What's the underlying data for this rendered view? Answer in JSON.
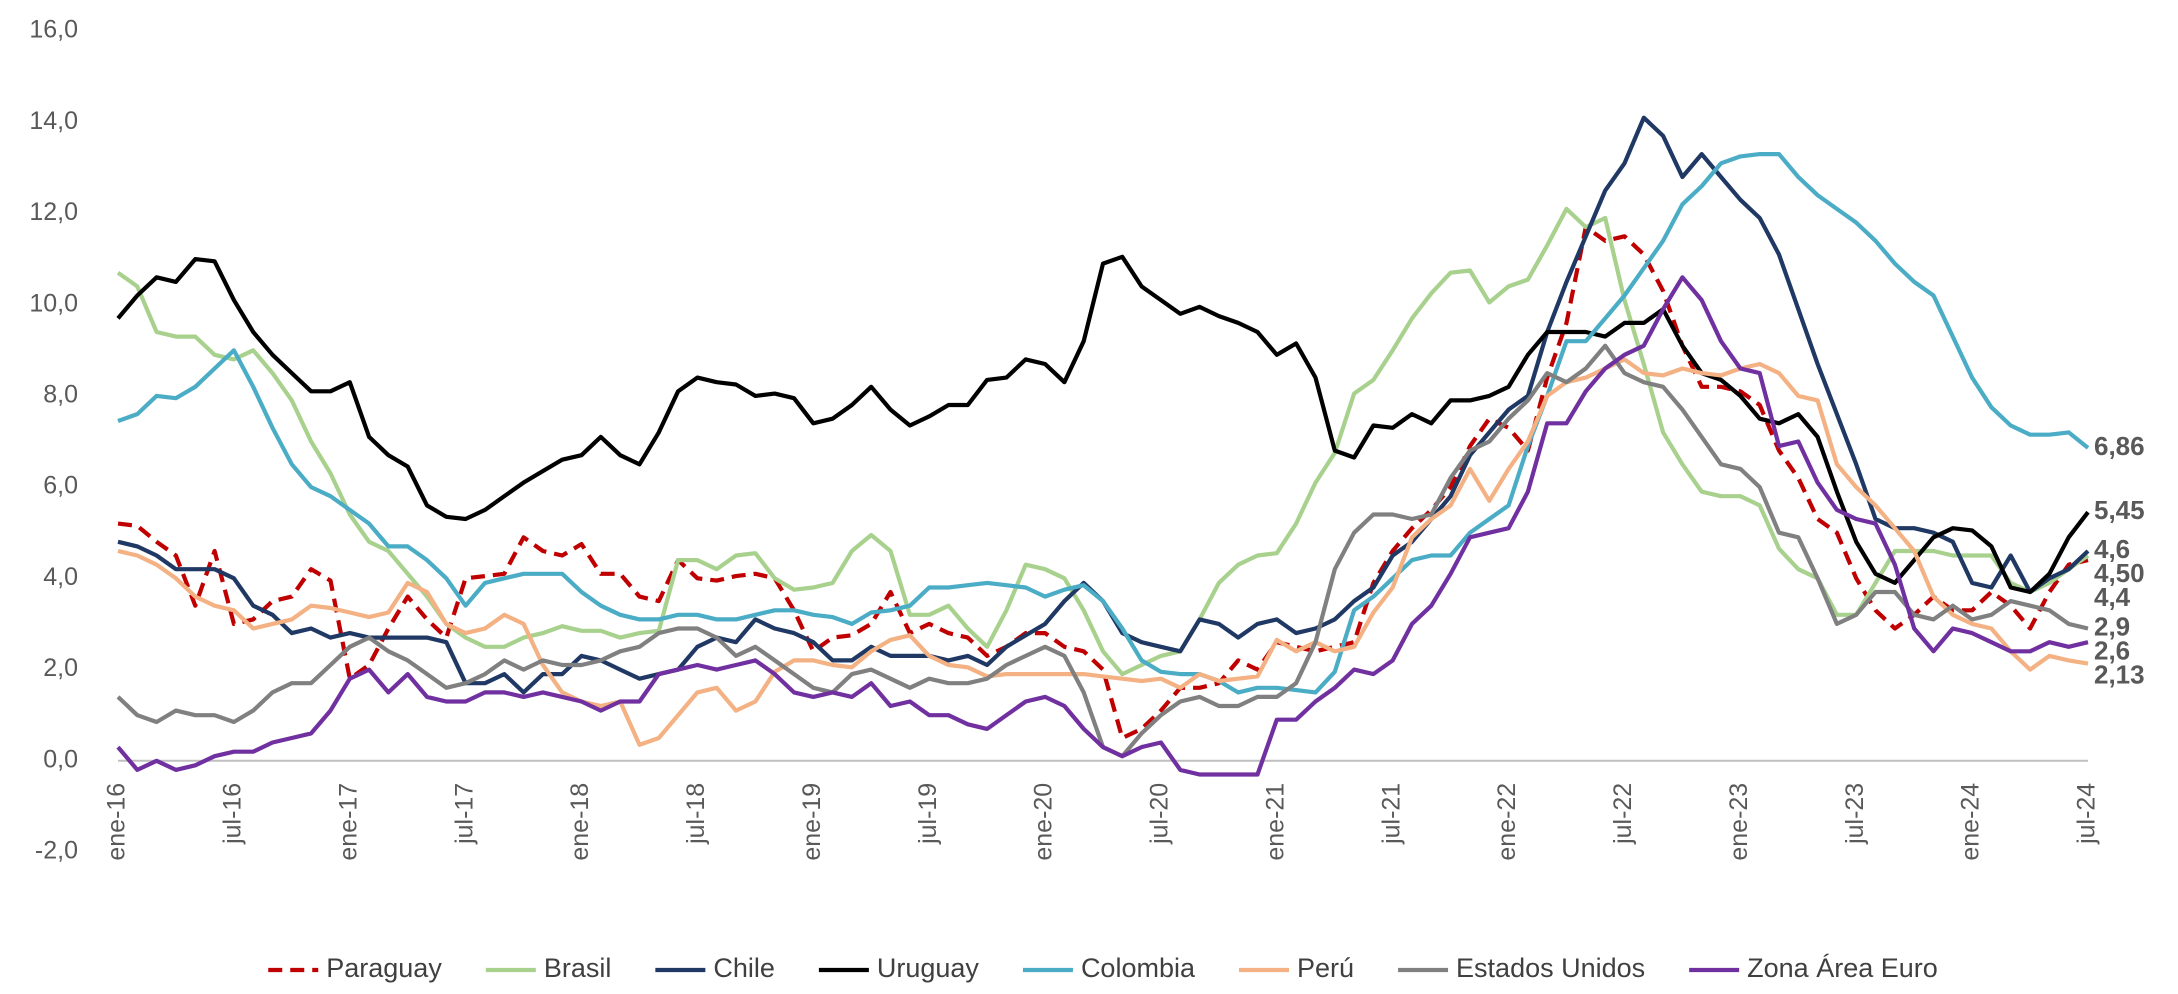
{
  "chart_data": {
    "type": "line",
    "categories": [
      "ene-16",
      null,
      null,
      null,
      null,
      null,
      "jul-16",
      null,
      null,
      null,
      null,
      null,
      "ene-17",
      null,
      null,
      null,
      null,
      null,
      "jul-17",
      null,
      null,
      null,
      null,
      null,
      "ene-18",
      null,
      null,
      null,
      null,
      null,
      "jul-18",
      null,
      null,
      null,
      null,
      null,
      "ene-19",
      null,
      null,
      null,
      null,
      null,
      "jul-19",
      null,
      null,
      null,
      null,
      null,
      "ene-20",
      null,
      null,
      null,
      null,
      null,
      "jul-20",
      null,
      null,
      null,
      null,
      null,
      "ene-21",
      null,
      null,
      null,
      null,
      null,
      "jul-21",
      null,
      null,
      null,
      null,
      null,
      "ene-22",
      null,
      null,
      null,
      null,
      null,
      "jul-22",
      null,
      null,
      null,
      null,
      null,
      "ene-23",
      null,
      null,
      null,
      null,
      null,
      "jul-23",
      null,
      null,
      null,
      null,
      null,
      "ene-24",
      null,
      null,
      null,
      null,
      null,
      "jul-24"
    ],
    "ylim": [
      -2,
      16
    ],
    "yticks": [
      {
        "value": -2,
        "label": "-2,0"
      },
      {
        "value": 0,
        "label": "0,0"
      },
      {
        "value": 2,
        "label": "2,0"
      },
      {
        "value": 4,
        "label": "4,0"
      },
      {
        "value": 6,
        "label": "6,0"
      },
      {
        "value": 8,
        "label": "8,0"
      },
      {
        "value": 10,
        "label": "10,0"
      },
      {
        "value": 12,
        "label": "12,0"
      },
      {
        "value": 14,
        "label": "14,0"
      },
      {
        "value": 16,
        "label": "16,0"
      }
    ],
    "grid": false,
    "legend": "bottom",
    "series": [
      {
        "name": "Paraguay",
        "color": "#c00000",
        "dash": "dashed",
        "values": [
          5.2,
          5.15,
          4.8,
          4.5,
          3.4,
          4.6,
          3.0,
          3.1,
          3.5,
          3.6,
          4.2,
          3.95,
          1.8,
          2.1,
          2.9,
          3.6,
          3.1,
          2.7,
          4.0,
          4.05,
          4.1,
          4.9,
          4.6,
          4.5,
          4.75,
          4.1,
          4.1,
          3.6,
          3.5,
          4.4,
          4.0,
          3.95,
          4.05,
          4.1,
          4.0,
          3.3,
          2.4,
          2.7,
          2.75,
          3.0,
          3.7,
          2.8,
          3.0,
          2.8,
          2.7,
          2.3,
          2.5,
          2.8,
          2.8,
          2.5,
          2.4,
          2.0,
          0.5,
          0.7,
          1.1,
          1.6,
          1.6,
          1.7,
          2.2,
          2.0,
          2.6,
          2.5,
          2.4,
          2.5,
          2.6,
          3.9,
          4.6,
          5.1,
          5.5,
          6.0,
          6.9,
          7.5,
          7.3,
          6.8,
          8.4,
          9.6,
          11.7,
          11.4,
          11.5,
          11.1,
          10.3,
          9.1,
          8.2,
          8.2,
          8.1,
          7.8,
          6.8,
          6.2,
          5.3,
          5.0,
          4.0,
          3.3,
          2.9,
          3.2,
          3.6,
          3.3,
          3.3,
          3.7,
          3.4,
          2.9,
          3.7,
          4.3,
          4.4
        ],
        "value_labels": {
          "102": "4,4"
        }
      },
      {
        "name": "Brasil",
        "color": "#a9d18e",
        "values": [
          10.7,
          10.4,
          9.4,
          9.3,
          9.3,
          8.9,
          8.8,
          9.0,
          8.5,
          7.9,
          7.0,
          6.3,
          5.4,
          4.8,
          4.6,
          4.1,
          3.6,
          3.0,
          2.7,
          2.5,
          2.5,
          2.7,
          2.8,
          2.95,
          2.85,
          2.85,
          2.7,
          2.8,
          2.85,
          4.4,
          4.4,
          4.2,
          4.5,
          4.55,
          4.0,
          3.75,
          3.8,
          3.9,
          4.6,
          4.95,
          4.6,
          3.2,
          3.2,
          3.4,
          2.9,
          2.5,
          3.3,
          4.3,
          4.2,
          4.0,
          3.3,
          2.4,
          1.9,
          2.1,
          2.3,
          2.4,
          3.1,
          3.9,
          4.3,
          4.5,
          4.55,
          5.2,
          6.1,
          6.75,
          8.05,
          8.35,
          9.0,
          9.7,
          10.25,
          10.7,
          10.75,
          10.05,
          10.4,
          10.55,
          11.3,
          12.1,
          11.7,
          11.9,
          10.1,
          8.7,
          7.2,
          6.5,
          5.9,
          5.8,
          5.8,
          5.6,
          4.65,
          4.2,
          4.0,
          3.2,
          3.2,
          3.9,
          4.6,
          4.6,
          4.6,
          4.5,
          4.5,
          4.5,
          3.9,
          3.7,
          3.9,
          4.2,
          4.5
        ],
        "value_labels": {
          "102": "4,50"
        }
      },
      {
        "name": "Chile",
        "color": "#203864",
        "values": [
          4.8,
          4.7,
          4.5,
          4.2,
          4.2,
          4.2,
          4.0,
          3.4,
          3.2,
          2.8,
          2.9,
          2.7,
          2.8,
          2.7,
          2.7,
          2.7,
          2.7,
          2.6,
          1.7,
          1.7,
          1.9,
          1.5,
          1.9,
          1.9,
          2.3,
          2.2,
          2.0,
          1.8,
          1.9,
          2.0,
          2.5,
          2.7,
          2.6,
          3.1,
          2.9,
          2.8,
          2.6,
          2.2,
          2.2,
          2.5,
          2.3,
          2.3,
          2.3,
          2.2,
          2.3,
          2.1,
          2.5,
          2.75,
          3.0,
          3.5,
          3.9,
          3.5,
          2.8,
          2.6,
          2.5,
          2.4,
          3.1,
          3.0,
          2.7,
          3.0,
          3.1,
          2.8,
          2.9,
          3.1,
          3.5,
          3.8,
          4.5,
          4.8,
          5.3,
          5.8,
          6.7,
          7.2,
          7.7,
          8.0,
          9.4,
          10.5,
          11.5,
          12.5,
          13.1,
          14.1,
          13.7,
          12.8,
          13.3,
          12.8,
          12.3,
          11.9,
          11.1,
          9.9,
          8.7,
          7.6,
          6.5,
          5.3,
          5.1,
          5.1,
          5.0,
          4.8,
          3.9,
          3.8,
          4.5,
          3.7,
          4.0,
          4.2,
          4.6
        ],
        "value_labels": {
          "102": "4,6"
        }
      },
      {
        "name": "Uruguay",
        "color": "#000000",
        "values": [
          9.7,
          10.2,
          10.6,
          10.5,
          11.0,
          10.95,
          10.1,
          9.4,
          8.9,
          8.5,
          8.1,
          8.1,
          8.3,
          7.1,
          6.7,
          6.45,
          5.6,
          5.35,
          5.3,
          5.5,
          5.8,
          6.1,
          6.35,
          6.6,
          6.7,
          7.1,
          6.7,
          6.5,
          7.2,
          8.1,
          8.4,
          8.3,
          8.25,
          8.0,
          8.05,
          7.95,
          7.4,
          7.5,
          7.8,
          8.2,
          7.7,
          7.35,
          7.55,
          7.8,
          7.8,
          8.35,
          8.4,
          8.8,
          8.7,
          8.3,
          9.2,
          10.9,
          11.05,
          10.4,
          10.1,
          9.8,
          9.95,
          9.75,
          9.6,
          9.4,
          8.9,
          9.15,
          8.4,
          6.8,
          6.65,
          7.35,
          7.3,
          7.6,
          7.4,
          7.9,
          7.9,
          8.0,
          8.2,
          8.9,
          9.4,
          9.4,
          9.4,
          9.3,
          9.6,
          9.6,
          9.9,
          9.1,
          8.5,
          8.35,
          8.0,
          7.5,
          7.4,
          7.6,
          7.1,
          5.9,
          4.8,
          4.1,
          3.9,
          4.4,
          4.9,
          5.1,
          5.05,
          4.7,
          3.8,
          3.7,
          4.1,
          4.9,
          5.45
        ],
        "value_labels": {
          "102": "5,45"
        }
      },
      {
        "name": "Colombia",
        "color": "#4bacc6",
        "values": [
          7.45,
          7.6,
          8.0,
          7.95,
          8.2,
          8.6,
          9.0,
          8.2,
          7.3,
          6.5,
          6.0,
          5.8,
          5.5,
          5.2,
          4.7,
          4.7,
          4.4,
          4.0,
          3.4,
          3.9,
          4.0,
          4.1,
          4.1,
          4.1,
          3.7,
          3.4,
          3.2,
          3.1,
          3.1,
          3.2,
          3.2,
          3.1,
          3.1,
          3.2,
          3.3,
          3.3,
          3.2,
          3.15,
          3.0,
          3.25,
          3.3,
          3.4,
          3.8,
          3.8,
          3.85,
          3.9,
          3.85,
          3.8,
          3.6,
          3.75,
          3.85,
          3.5,
          2.9,
          2.2,
          1.95,
          1.9,
          1.9,
          1.75,
          1.5,
          1.6,
          1.6,
          1.55,
          1.5,
          1.95,
          3.3,
          3.6,
          4.0,
          4.4,
          4.5,
          4.5,
          5.0,
          5.3,
          5.6,
          6.9,
          8.0,
          9.2,
          9.2,
          9.7,
          10.2,
          10.8,
          11.4,
          12.2,
          12.6,
          13.1,
          13.25,
          13.3,
          13.3,
          12.8,
          12.4,
          12.1,
          11.8,
          11.4,
          10.9,
          10.5,
          10.2,
          9.3,
          8.4,
          7.75,
          7.35,
          7.15,
          7.15,
          7.2,
          6.86
        ],
        "value_labels": {
          "102": "6,86"
        }
      },
      {
        "name": "Perú",
        "color": "#f4b183",
        "values": [
          4.6,
          4.5,
          4.3,
          4.0,
          3.6,
          3.4,
          3.3,
          2.9,
          3.0,
          3.1,
          3.4,
          3.35,
          3.25,
          3.15,
          3.25,
          3.9,
          3.7,
          3.0,
          2.8,
          2.9,
          3.2,
          3.0,
          2.1,
          1.5,
          1.3,
          1.2,
          1.3,
          0.35,
          0.5,
          1.0,
          1.5,
          1.6,
          1.1,
          1.3,
          1.95,
          2.2,
          2.2,
          2.1,
          2.05,
          2.4,
          2.65,
          2.75,
          2.3,
          2.1,
          2.05,
          1.85,
          1.9,
          1.9,
          1.9,
          1.9,
          1.9,
          1.85,
          1.8,
          1.75,
          1.8,
          1.6,
          1.9,
          1.75,
          1.8,
          1.85,
          2.65,
          2.4,
          2.6,
          2.4,
          2.5,
          3.25,
          3.8,
          4.9,
          5.3,
          5.6,
          6.4,
          5.7,
          6.4,
          7.0,
          8.0,
          8.3,
          8.4,
          8.6,
          8.8,
          8.5,
          8.45,
          8.6,
          8.5,
          8.45,
          8.6,
          8.7,
          8.5,
          8.0,
          7.9,
          6.5,
          6.0,
          5.6,
          5.1,
          4.6,
          3.6,
          3.2,
          3.0,
          2.9,
          2.4,
          2.0,
          2.3,
          2.2,
          2.13
        ],
        "value_labels": {
          "102": "2,13"
        }
      },
      {
        "name": "Estados Unidos",
        "color": "#808080",
        "values": [
          1.4,
          1.0,
          0.85,
          1.1,
          1.0,
          1.0,
          0.85,
          1.1,
          1.5,
          1.7,
          1.7,
          2.1,
          2.5,
          2.7,
          2.4,
          2.2,
          1.9,
          1.6,
          1.7,
          1.9,
          2.2,
          2.0,
          2.2,
          2.1,
          2.1,
          2.2,
          2.4,
          2.5,
          2.8,
          2.9,
          2.9,
          2.7,
          2.3,
          2.5,
          2.2,
          1.9,
          1.6,
          1.5,
          1.9,
          2.0,
          1.8,
          1.6,
          1.8,
          1.7,
          1.7,
          1.8,
          2.1,
          2.3,
          2.5,
          2.3,
          1.5,
          0.3,
          0.1,
          0.6,
          1.0,
          1.3,
          1.4,
          1.2,
          1.2,
          1.4,
          1.4,
          1.7,
          2.6,
          4.2,
          5.0,
          5.4,
          5.4,
          5.3,
          5.4,
          6.2,
          6.8,
          7.0,
          7.5,
          7.9,
          8.5,
          8.3,
          8.6,
          9.1,
          8.5,
          8.3,
          8.2,
          7.7,
          7.1,
          6.5,
          6.4,
          6.0,
          5.0,
          4.9,
          4.0,
          3.0,
          3.2,
          3.7,
          3.7,
          3.2,
          3.1,
          3.4,
          3.1,
          3.2,
          3.5,
          3.4,
          3.3,
          3.0,
          2.9
        ],
        "value_labels": {
          "102": "2,9"
        }
      },
      {
        "name": "Zona Área Euro",
        "color": "#7030a0",
        "values": [
          0.3,
          -0.2,
          0.0,
          -0.2,
          -0.1,
          0.1,
          0.2,
          0.2,
          0.4,
          0.5,
          0.6,
          1.1,
          1.8,
          2.0,
          1.5,
          1.9,
          1.4,
          1.3,
          1.3,
          1.5,
          1.5,
          1.4,
          1.5,
          1.4,
          1.3,
          1.1,
          1.3,
          1.3,
          1.9,
          2.0,
          2.1,
          2.0,
          2.1,
          2.2,
          1.9,
          1.5,
          1.4,
          1.5,
          1.4,
          1.7,
          1.2,
          1.3,
          1.0,
          1.0,
          0.8,
          0.7,
          1.0,
          1.3,
          1.4,
          1.2,
          0.7,
          0.3,
          0.1,
          0.3,
          0.4,
          -0.2,
          -0.3,
          -0.3,
          -0.3,
          -0.3,
          0.9,
          0.9,
          1.3,
          1.6,
          2.0,
          1.9,
          2.2,
          3.0,
          3.4,
          4.1,
          4.9,
          5.0,
          5.1,
          5.9,
          7.4,
          7.4,
          8.1,
          8.6,
          8.9,
          9.1,
          9.9,
          10.6,
          10.1,
          9.2,
          8.6,
          8.5,
          6.9,
          7.0,
          6.1,
          5.5,
          5.3,
          5.2,
          4.3,
          2.9,
          2.4,
          2.9,
          2.8,
          2.6,
          2.4,
          2.4,
          2.6,
          2.5,
          2.6
        ],
        "value_labels": {
          "102": "2,6"
        }
      }
    ]
  }
}
